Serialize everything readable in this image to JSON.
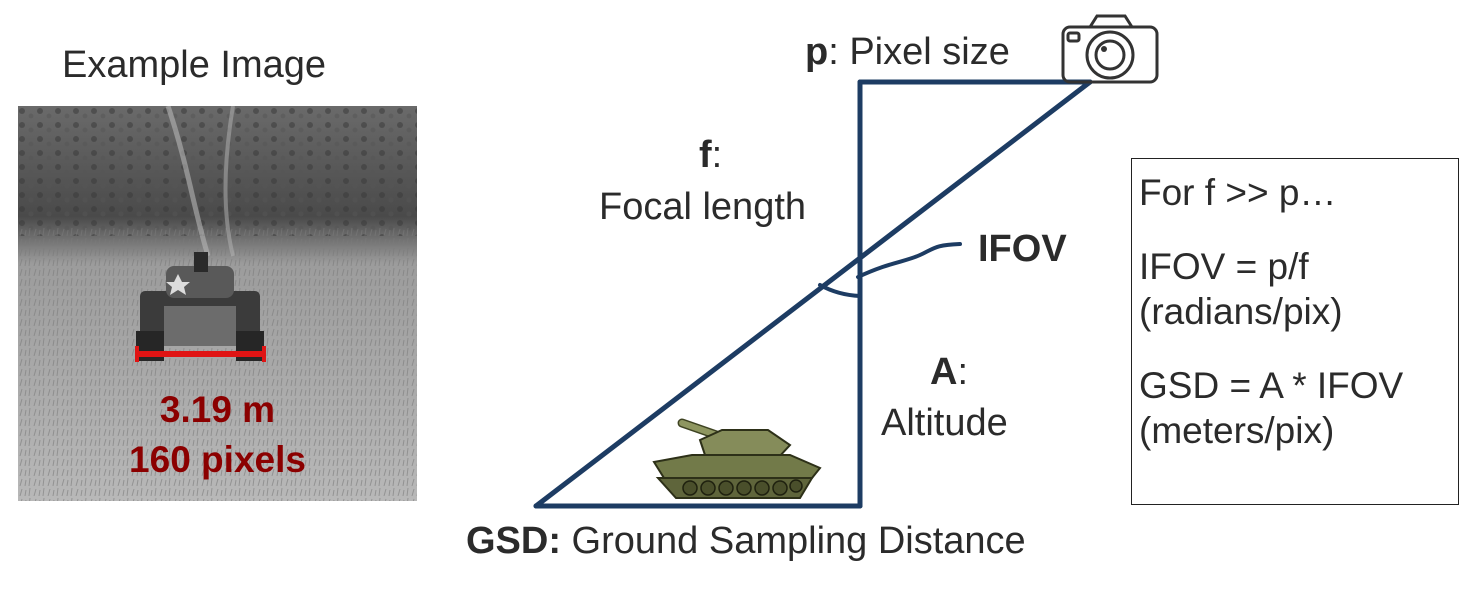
{
  "example": {
    "title": "Example Image",
    "measure_meters": "3.19 m",
    "measure_pixels": "160 pixels",
    "measure_color": "#8b0000",
    "bar_color": "#e01414"
  },
  "diagram": {
    "line_color": "#1d3c63",
    "pixel_label": {
      "symbol": "p",
      "text": ": Pixel size"
    },
    "focal_label": {
      "symbol": "f",
      "colon": ":",
      "text": "Focal length"
    },
    "altitude_label": {
      "symbol": "A",
      "colon": ":",
      "text": "Altitude"
    },
    "ifov_label": "IFOV",
    "gsd_label": {
      "symbol": "GSD:",
      "text": " Ground Sampling Distance"
    },
    "icons": [
      "camera-icon",
      "tank-icon"
    ]
  },
  "formulas": {
    "intro": "For f >> p…",
    "ifov_eq": "IFOV = p/f",
    "ifov_unit": "(radians/pix)",
    "gsd_eq": "GSD = A * IFOV",
    "gsd_unit": "(meters/pix)"
  }
}
